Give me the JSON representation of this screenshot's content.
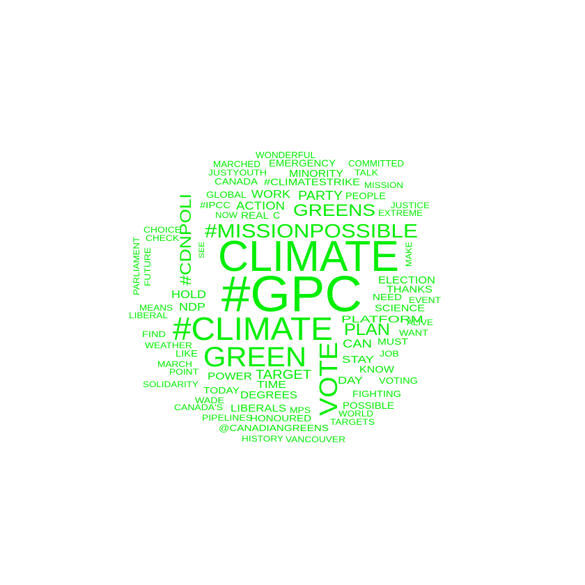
{
  "color": "#00ee00",
  "words": [
    "CLIMATE",
    "#GPC",
    "#CLIMATE",
    "GREEN",
    "#MISSIONPOSSIBLE",
    "VOTE",
    "GREENS",
    "#CDNPOLI",
    "PLAN",
    "TARGET",
    "PARTY",
    "ACTION",
    "WORK",
    "MINORITY",
    "EMERGENCY",
    "#CLIMATESTRIKE",
    "WONDERFUL",
    "MARCHED",
    "JUSTYOUTH",
    "CANADA",
    "COMMITTED",
    "TALK",
    "MISSION",
    "PEOPLE",
    "GLOBAL",
    "#IPCC",
    "NOW",
    "REAL",
    "C",
    "JUSTICE",
    "EXTREME",
    "CHOICE",
    "CHECK",
    "SEE",
    "MAKE",
    "PARLIAMENT",
    "FUTURE",
    "ELECTION",
    "THANKS",
    "NEED",
    "EVENT",
    "SCIENCE",
    "HOLD",
    "NDP",
    "MEANS",
    "LIBERAL",
    "PLATFORM",
    "ALIVE",
    "WANT",
    "CAN",
    "MUST",
    "FIND",
    "WEATHER",
    "LIKE",
    "JOB",
    "STAY",
    "KNOW",
    "MARCH",
    "POINT",
    "POWER",
    "TIME",
    "DAY",
    "VOTING",
    "SOLIDARITY",
    "TODAY",
    "DEGREES",
    "FIGHTING",
    "WADE",
    "CANADA'S",
    "LIBERALS",
    "MPS",
    "POSSIBLE",
    "WORLD",
    "PIPELINES",
    "HONOURED",
    "TARGETS",
    "@CANADIANGREENS",
    "HISTORY",
    "VANCOUVER"
  ]
}
